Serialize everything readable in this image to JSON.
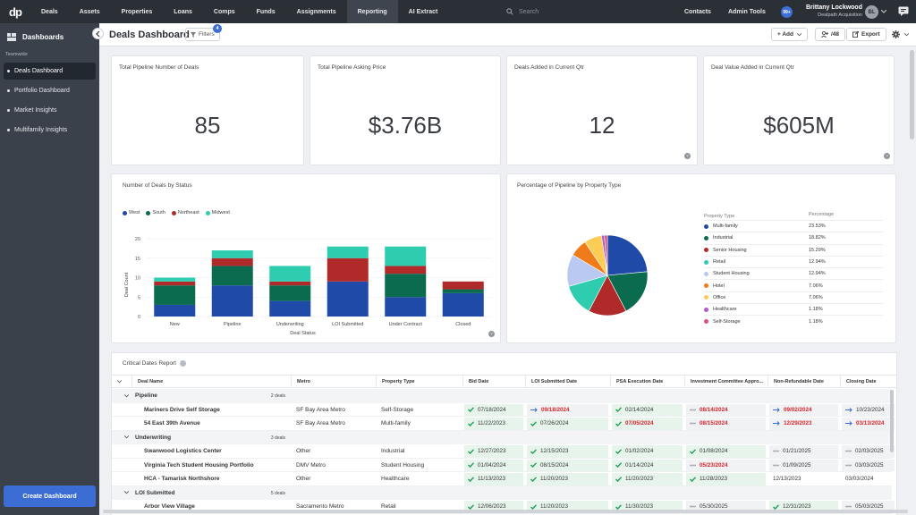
{
  "nav": {
    "logo": "dp",
    "items": [
      {
        "label": "Deals",
        "active": false
      },
      {
        "label": "Assets",
        "active": false
      },
      {
        "label": "Properties",
        "active": false
      },
      {
        "label": "Loans",
        "active": false
      },
      {
        "label": "Comps",
        "active": false
      },
      {
        "label": "Funds",
        "active": false
      },
      {
        "label": "Assignments",
        "active": false
      },
      {
        "label": "Reporting",
        "active": true
      },
      {
        "label": "AI Extract",
        "active": false
      }
    ],
    "search_placeholder": "Search",
    "contacts": "Contacts",
    "admin_tools": "Admin Tools",
    "notifications": "99+",
    "user_name": "Brittany Lockwood",
    "user_org": "Dealpath Acquisition",
    "user_initials": "BL"
  },
  "sidebar": {
    "title": "Dashboards",
    "section": "Teamwide",
    "items": [
      {
        "label": "Deals Dashboard",
        "active": true
      },
      {
        "label": "Portfolio Dashboard",
        "active": false
      },
      {
        "label": "Market Insights",
        "active": false
      },
      {
        "label": "Multifamily Insights",
        "active": false
      }
    ],
    "create_button": "Create Dashboard"
  },
  "header": {
    "title": "Deals Dashboard",
    "filters_label": "Filters",
    "filters_count": "4",
    "add_label": "+ Add",
    "share_count": "/48",
    "export_label": "Export"
  },
  "kpis": [
    {
      "title": "Total Pipeline Number of Deals",
      "value": "85"
    },
    {
      "title": "Total Pipeline Asking Price",
      "value": "$3.76B"
    },
    {
      "title": "Deals Added in Current Qtr",
      "value": "12"
    },
    {
      "title": "Deal Value Added in Current Qtr",
      "value": "$605M"
    }
  ],
  "chart_data": [
    {
      "type": "bar",
      "title": "Number of Deals by Status",
      "xlabel": "Deal Status",
      "ylabel": "Deal Count",
      "ylim": [
        0,
        20
      ],
      "yticks": [
        "0",
        "5",
        "10",
        "15",
        "20"
      ],
      "stacked": true,
      "legend_position": "top-left",
      "categories": [
        "New",
        "Pipeline",
        "Underwriting",
        "LOI Submitted",
        "Under Contract",
        "Closed"
      ],
      "series": [
        {
          "name": "West",
          "color": "#1f4aa8",
          "values": [
            3,
            8,
            4,
            9,
            5,
            6
          ]
        },
        {
          "name": "South",
          "color": "#0b6b4f",
          "values": [
            5,
            5,
            4,
            0,
            6,
            1
          ]
        },
        {
          "name": "Northeast",
          "color": "#b02a2a",
          "values": [
            1,
            2,
            1,
            6,
            2,
            2
          ]
        },
        {
          "name": "Midwest",
          "color": "#2ecdb0",
          "values": [
            1,
            2,
            4,
            3,
            5,
            0
          ]
        }
      ]
    },
    {
      "type": "pie",
      "title": "Percentage of Pipeline by Property Type",
      "legend_headers": [
        "Property Type",
        "Percentage"
      ],
      "slices": [
        {
          "label": "Multi-family",
          "value": 23.53,
          "display": "23.53%",
          "color": "#1f4aa8"
        },
        {
          "label": "Industrial",
          "value": 18.82,
          "display": "18.82%",
          "color": "#0b6b4f"
        },
        {
          "label": "Senior Housing",
          "value": 15.29,
          "display": "15.29%",
          "color": "#b02a2a"
        },
        {
          "label": "Retail",
          "value": 12.94,
          "display": "12.94%",
          "color": "#2ecdb0"
        },
        {
          "label": "Student Housing",
          "value": 12.94,
          "display": "12.94%",
          "color": "#b9c9f2"
        },
        {
          "label": "Hotel",
          "value": 7.06,
          "display": "7.06%",
          "color": "#f07b1a"
        },
        {
          "label": "Office",
          "value": 7.06,
          "display": "7.06%",
          "color": "#fbcd55"
        },
        {
          "label": "Healthcare",
          "value": 1.18,
          "display": "1.18%",
          "color": "#b05ad0"
        },
        {
          "label": "Self-Storage",
          "value": 1.18,
          "display": "1.18%",
          "color": "#d9527a"
        }
      ]
    }
  ],
  "table": {
    "title": "Critical Dates Report",
    "columns": [
      "Deal Name",
      "Metro",
      "Property Type",
      "Bid Date",
      "LOI Submitted Date",
      "PSA Execution Date",
      "Investment Committee Appro...",
      "Non-Refundable Date",
      "Closing Date"
    ],
    "groups": [
      {
        "name": "Pipeline",
        "count": "2 deals",
        "rows": [
          {
            "name": "Mariners Drive Self Storage",
            "metro": "SF Bay Area Metro",
            "type": "Self-Storage",
            "dates": [
              [
                "07/18/2024",
                "ok",
                false
              ],
              [
                "09/18/2024",
                "arrow",
                true
              ],
              [
                "02/14/2024",
                "ok",
                false
              ],
              [
                "08/14/2024",
                "dash",
                true
              ],
              [
                "09/02/2024",
                "arrow",
                true
              ],
              [
                "10/23/2024",
                "arrow",
                false
              ]
            ]
          },
          {
            "name": "54 East 39th Avenue",
            "metro": "SF Bay Area Metro",
            "type": "Multi-family",
            "dates": [
              [
                "11/22/2023",
                "ok",
                false
              ],
              [
                "07/26/2024",
                "ok",
                false
              ],
              [
                "07/05/2024",
                "ok",
                true
              ],
              [
                "08/15/2024",
                "dash",
                true
              ],
              [
                "12/29/2023",
                "arrow",
                true
              ],
              [
                "03/13/2024",
                "arrow",
                true
              ]
            ]
          }
        ]
      },
      {
        "name": "Underwriting",
        "count": "3 deals",
        "rows": [
          {
            "name": "Swanwood Logistics Center",
            "metro": "Other",
            "type": "Industrial",
            "dates": [
              [
                "12/27/2023",
                "ok",
                false
              ],
              [
                "12/15/2023",
                "ok",
                false
              ],
              [
                "01/02/2024",
                "ok",
                false
              ],
              [
                "01/08/2024",
                "ok",
                false
              ],
              [
                "01/21/2025",
                "dash",
                false
              ],
              [
                "02/03/2025",
                "dash",
                false
              ]
            ]
          },
          {
            "name": "Virginia Tech Student Housing Portfolio",
            "metro": "DMV Metro",
            "type": "Student Housing",
            "dates": [
              [
                "01/04/2024",
                "ok",
                false
              ],
              [
                "08/15/2024",
                "ok",
                false
              ],
              [
                "01/14/2024",
                "ok",
                false
              ],
              [
                "05/23/2024",
                "dash",
                true
              ],
              [
                "01/09/2025",
                "dash",
                false
              ],
              [
                "03/03/2025",
                "dash",
                false
              ]
            ]
          },
          {
            "name": "HCA - Tamarisk Northshore",
            "metro": "Other",
            "type": "Healthcare",
            "dates": [
              [
                "11/13/2023",
                "ok",
                false
              ],
              [
                "11/20/2023",
                "ok",
                false
              ],
              [
                "11/20/2023",
                "ok",
                false
              ],
              [
                "11/28/2023",
                "ok",
                false
              ],
              [
                "12/13/2023",
                "plain",
                false
              ],
              [
                "03/03/2024",
                "plain",
                false
              ]
            ]
          }
        ]
      },
      {
        "name": "LOI Submitted",
        "count": "5 deals",
        "rows": [
          {
            "name": "Arbor View Village",
            "metro": "Sacramento Metro",
            "type": "Retail",
            "dates": [
              [
                "12/06/2023",
                "ok",
                false
              ],
              [
                "11/20/2023",
                "ok",
                false
              ],
              [
                "11/30/2023",
                "ok",
                false
              ],
              [
                "05/30/2025",
                "dash",
                false
              ],
              [
                "12/31/2023",
                "ok",
                false
              ],
              [
                "05/03/2025",
                "dash",
                false
              ]
            ]
          }
        ]
      }
    ]
  }
}
